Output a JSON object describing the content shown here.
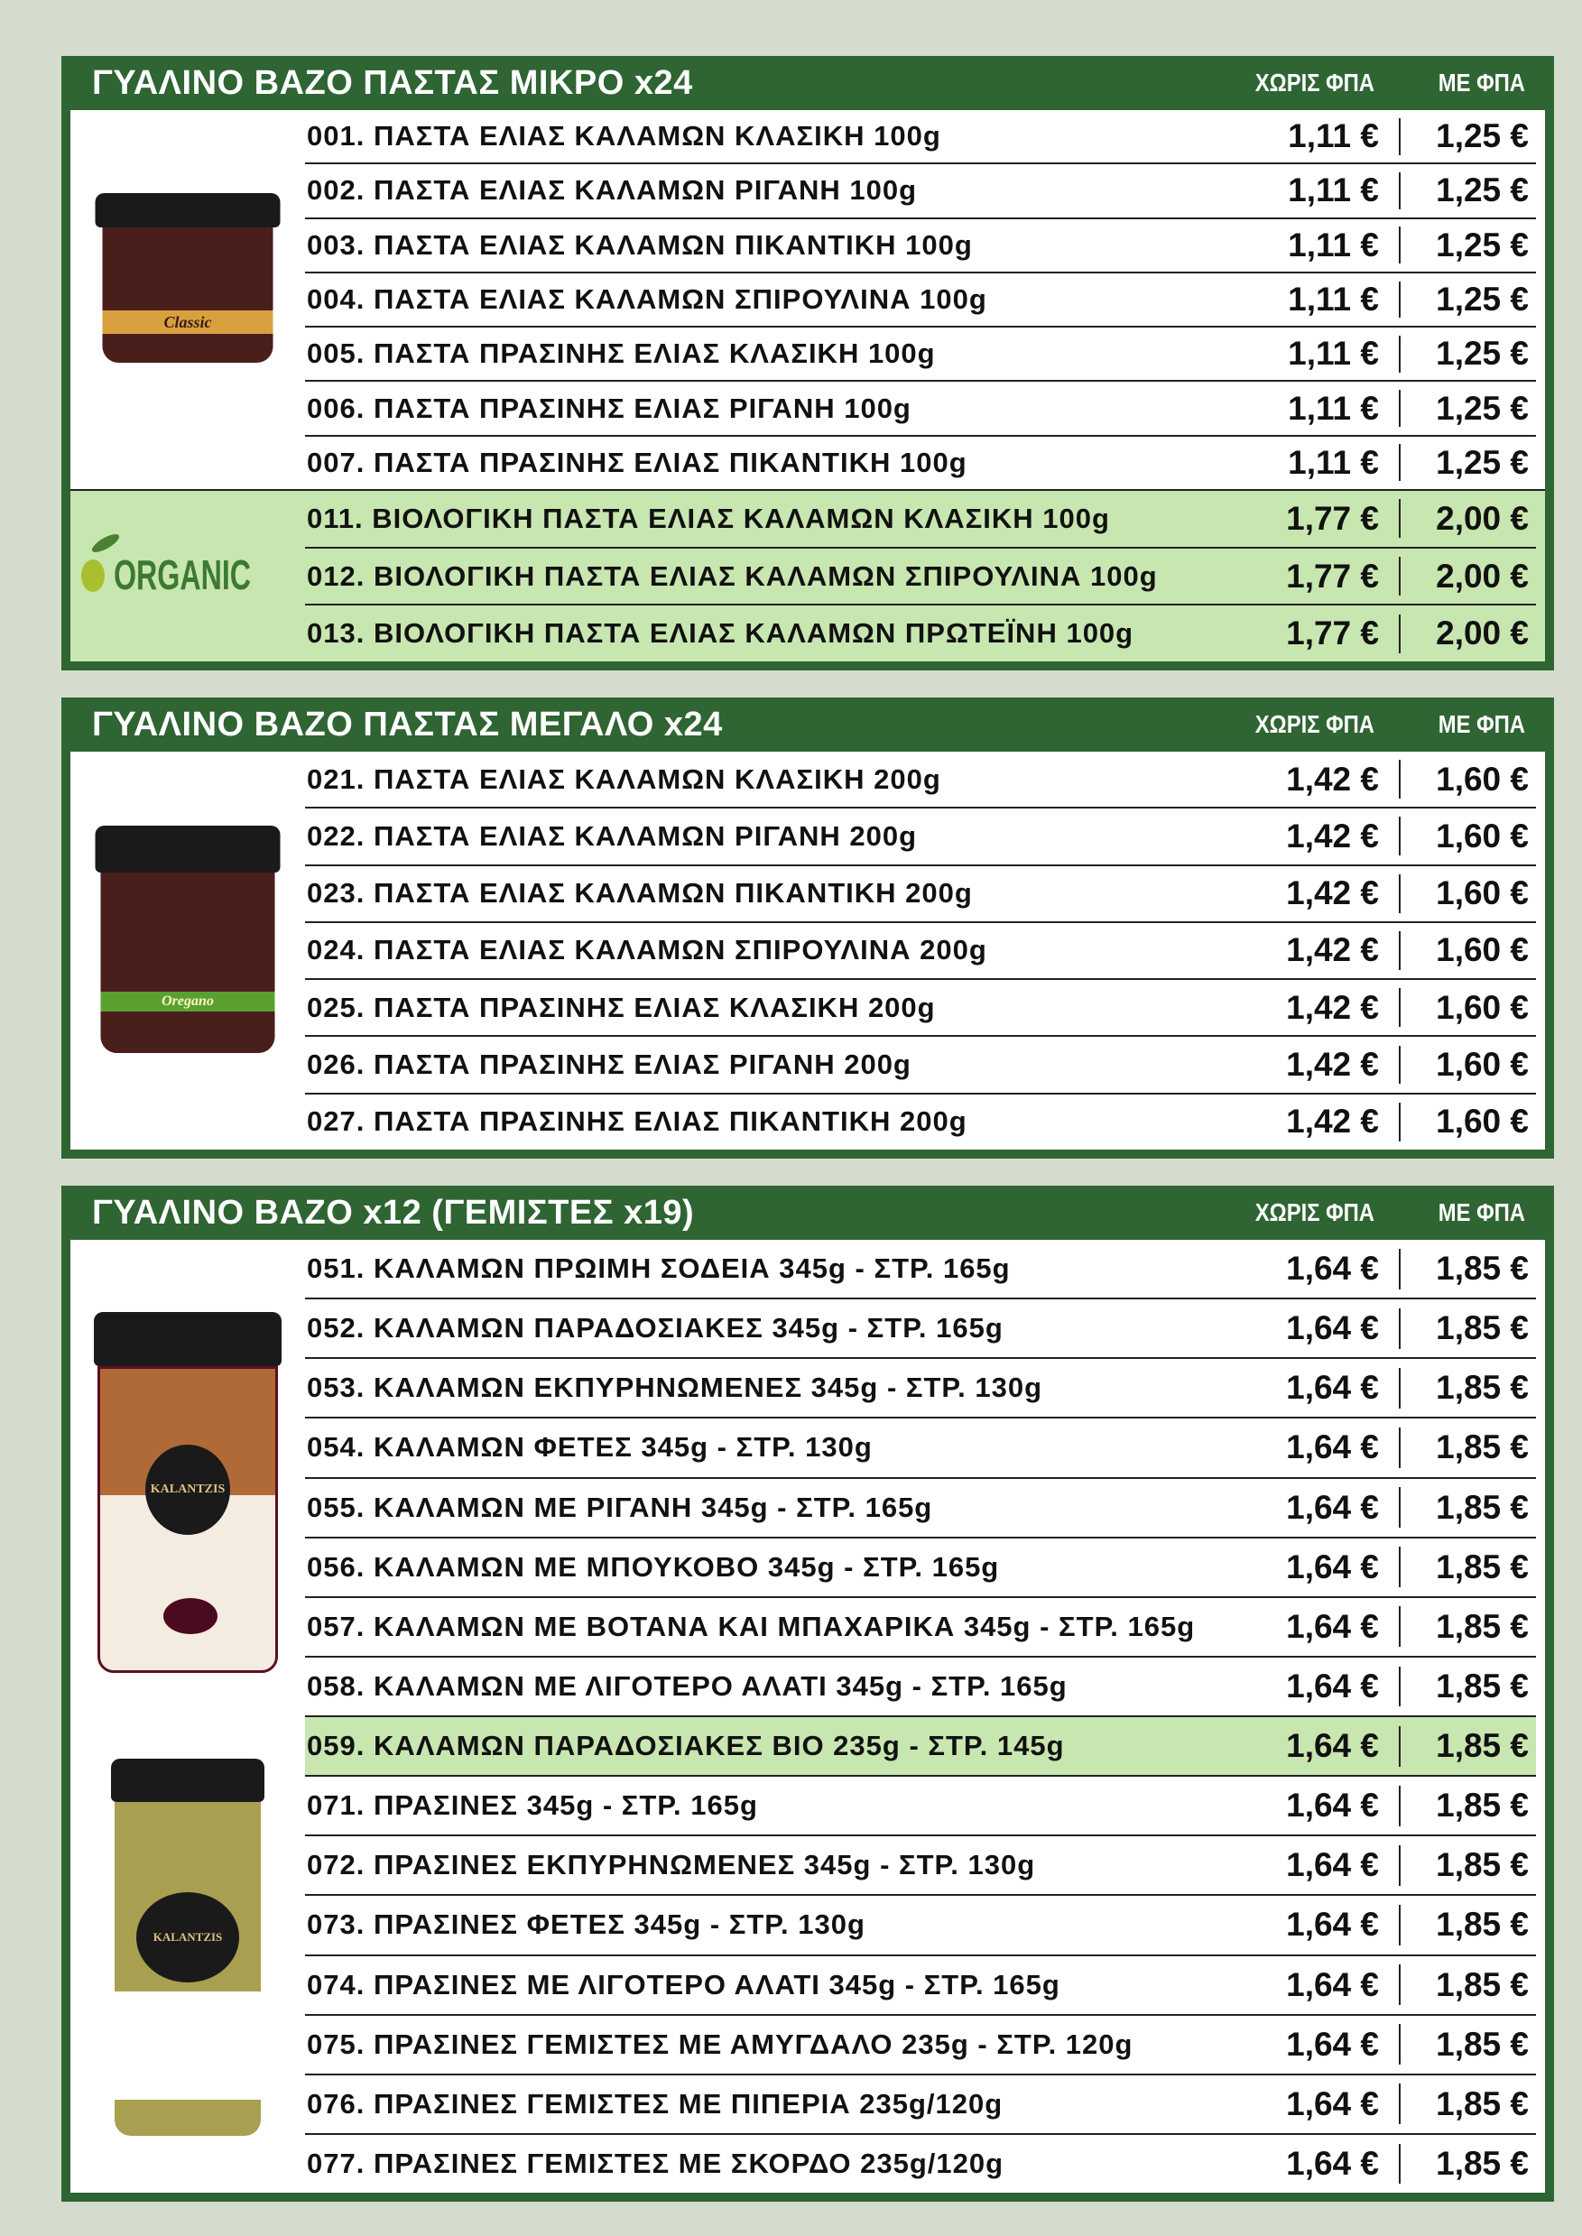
{
  "colors": {
    "background": "#d6dccd",
    "header": "#2f6433",
    "highlight": "#c8e6b0"
  },
  "columns": {
    "without_vat": "ΧΩΡΙΣ ΦΠΑ",
    "with_vat": "ΜΕ ΦΠΑ"
  },
  "sections": [
    {
      "title": "ΓΥΑΛΙΝΟ ΒΑΖΟ ΠΑΣΤΑΣ ΜΙΚΡΟ x24",
      "jar_label": "Classic",
      "organic_logo": "ORGANIC",
      "items": [
        {
          "name": "001. ΠΑΣΤΑ ΕΛΙΑΣ ΚΑΛΑΜΩΝ ΚΛΑΣΙΚΗ 100g",
          "p1": "1,11 €",
          "p2": "1,25 €"
        },
        {
          "name": "002. ΠΑΣΤΑ ΕΛΙΑΣ ΚΑΛΑΜΩΝ ΡΙΓΑΝΗ 100g",
          "p1": "1,11 €",
          "p2": "1,25 €"
        },
        {
          "name": "003. ΠΑΣΤΑ ΕΛΙΑΣ ΚΑΛΑΜΩΝ ΠΙΚΑΝΤΙΚΗ 100g",
          "p1": "1,11 €",
          "p2": "1,25 €"
        },
        {
          "name": "004. ΠΑΣΤΑ ΕΛΙΑΣ ΚΑΛΑΜΩΝ ΣΠΙΡΟΥΛΙΝΑ 100g",
          "p1": "1,11 €",
          "p2": "1,25 €"
        },
        {
          "name": "005. ΠΑΣΤΑ ΠΡΑΣΙΝΗΣ ΕΛΙΑΣ ΚΛΑΣΙΚΗ 100g",
          "p1": "1,11 €",
          "p2": "1,25 €"
        },
        {
          "name": "006. ΠΑΣΤΑ ΠΡΑΣΙΝΗΣ ΕΛΙΑΣ ΡΙΓΑΝΗ 100g",
          "p1": "1,11 €",
          "p2": "1,25 €"
        },
        {
          "name": "007. ΠΑΣΤΑ ΠΡΑΣΙΝΗΣ ΕΛΙΑΣ ΠΙΚΑΝΤΙΚΗ 100g",
          "p1": "1,11 €",
          "p2": "1,25 €"
        }
      ],
      "organic_items": [
        {
          "name": "011. ΒΙΟΛΟΓΙΚΗ ΠΑΣΤΑ ΕΛΙΑΣ ΚΑΛΑΜΩΝ ΚΛΑΣΙΚΗ 100g",
          "p1": "1,77 €",
          "p2": "2,00 €"
        },
        {
          "name": "012. ΒΙΟΛΟΓΙΚΗ ΠΑΣΤΑ ΕΛΙΑΣ ΚΑΛΑΜΩΝ ΣΠΙΡΟΥΛΙΝΑ 100g",
          "p1": "1,77 €",
          "p2": "2,00 €"
        },
        {
          "name": "013. ΒΙΟΛΟΓΙΚΗ ΠΑΣΤΑ ΕΛΙΑΣ ΚΑΛΑΜΩΝ ΠΡΩΤΕΪΝΗ 100g",
          "p1": "1,77 €",
          "p2": "2,00 €"
        }
      ]
    },
    {
      "title": "ΓΥΑΛΙΝΟ ΒΑΖΟ ΠΑΣΤΑΣ ΜΕΓΑΛΟ x24",
      "jar_label": "Oregano",
      "items": [
        {
          "name": "021. ΠΑΣΤΑ ΕΛΙΑΣ ΚΑΛΑΜΩΝ ΚΛΑΣΙΚΗ 200g",
          "p1": "1,42 €",
          "p2": "1,60 €"
        },
        {
          "name": "022. ΠΑΣΤΑ ΕΛΙΑΣ ΚΑΛΑΜΩΝ ΡΙΓΑΝΗ 200g",
          "p1": "1,42 €",
          "p2": "1,60 €"
        },
        {
          "name": "023. ΠΑΣΤΑ ΕΛΙΑΣ ΚΑΛΑΜΩΝ ΠΙΚΑΝΤΙΚΗ 200g",
          "p1": "1,42 €",
          "p2": "1,60 €"
        },
        {
          "name": "024. ΠΑΣΤΑ ΕΛΙΑΣ ΚΑΛΑΜΩΝ ΣΠΙΡΟΥΛΙΝΑ 200g",
          "p1": "1,42 €",
          "p2": "1,60 €"
        },
        {
          "name": "025. ΠΑΣΤΑ ΠΡΑΣΙΝΗΣ ΕΛΙΑΣ ΚΛΑΣΙΚΗ 200g",
          "p1": "1,42 €",
          "p2": "1,60 €"
        },
        {
          "name": "026. ΠΑΣΤΑ ΠΡΑΣΙΝΗΣ ΕΛΙΑΣ ΡΙΓΑΝΗ 200g",
          "p1": "1,42 €",
          "p2": "1,60 €"
        },
        {
          "name": "027. ΠΑΣΤΑ ΠΡΑΣΙΝΗΣ ΕΛΙΑΣ ΠΙΚΑΝΤΙΚΗ 200g",
          "p1": "1,42 €",
          "p2": "1,60 €"
        }
      ]
    },
    {
      "title": "ΓΥΑΛΙΝΟ ΒΑΖΟ x12 (ΓΕΜΙΣΤΕΣ x19)",
      "jar_brand": "KALANTZIS",
      "items": [
        {
          "name": "051. ΚΑΛΑΜΩΝ ΠΡΩΙΜΗ ΣΟΔΕΙΑ 345g - ΣΤΡ. 165g",
          "p1": "1,64 €",
          "p2": "1,85 €"
        },
        {
          "name": "052. ΚΑΛΑΜΩΝ ΠΑΡΑΔΟΣΙΑΚΕΣ 345g - ΣΤΡ. 165g",
          "p1": "1,64 €",
          "p2": "1,85 €"
        },
        {
          "name": "053. ΚΑΛΑΜΩΝ ΕΚΠΥΡΗΝΩΜΕΝΕΣ 345g - ΣΤΡ. 130g",
          "p1": "1,64 €",
          "p2": "1,85 €"
        },
        {
          "name": "054. ΚΑΛΑΜΩΝ ΦΕΤΕΣ 345g - ΣΤΡ. 130g",
          "p1": "1,64 €",
          "p2": "1,85 €"
        },
        {
          "name": "055. ΚΑΛΑΜΩΝ ΜΕ ΡΙΓΑΝΗ 345g - ΣΤΡ. 165g",
          "p1": "1,64 €",
          "p2": "1,85 €"
        },
        {
          "name": "056. ΚΑΛΑΜΩΝ ΜΕ ΜΠΟΥΚΟΒΟ 345g - ΣΤΡ. 165g",
          "p1": "1,64 €",
          "p2": "1,85 €"
        },
        {
          "name": "057. ΚΑΛΑΜΩΝ ΜΕ ΒΟΤΑΝΑ ΚΑΙ ΜΠΑΧΑΡΙΚΑ 345g - ΣΤΡ. 165g",
          "p1": "1,64 €",
          "p2": "1,85 €"
        },
        {
          "name": "058. ΚΑΛΑΜΩΝ ΜΕ ΛΙΓΟΤΕΡΟ ΑΛΑΤΙ 345g - ΣΤΡ. 165g",
          "p1": "1,64 €",
          "p2": "1,85 €"
        },
        {
          "name": "059. ΚΑΛΑΜΩΝ ΠΑΡΑΔΟΣΙΑΚΕΣ ΒΙΟ 235g - ΣΤΡ. 145g",
          "p1": "1,64 €",
          "p2": "1,85 €",
          "highlight": true
        },
        {
          "name": "071. ΠΡΑΣΙΝΕΣ 345g - ΣΤΡ. 165g",
          "p1": "1,64 €",
          "p2": "1,85 €"
        },
        {
          "name": "072. ΠΡΑΣΙΝΕΣ ΕΚΠΥΡΗΝΩΜΕΝΕΣ 345g - ΣΤΡ. 130g",
          "p1": "1,64 €",
          "p2": "1,85 €"
        },
        {
          "name": "073. ΠΡΑΣΙΝΕΣ ΦΕΤΕΣ 345g - ΣΤΡ. 130g",
          "p1": "1,64 €",
          "p2": "1,85 €"
        },
        {
          "name": "074. ΠΡΑΣΙΝΕΣ ΜΕ ΛΙΓΟΤΕΡΟ ΑΛΑΤΙ 345g - ΣΤΡ. 165g",
          "p1": "1,64 €",
          "p2": "1,85 €"
        },
        {
          "name": "075. ΠΡΑΣΙΝΕΣ ΓΕΜΙΣΤΕΣ ΜΕ ΑΜΥΓΔΑΛΟ 235g - ΣΤΡ. 120g",
          "p1": "1,64 €",
          "p2": "1,85 €"
        },
        {
          "name": "076. ΠΡΑΣΙΝΕΣ ΓΕΜΙΣΤΕΣ ΜΕ ΠΙΠΕΡΙΑ 235g/120g",
          "p1": "1,64 €",
          "p2": "1,85 €"
        },
        {
          "name": "077. ΠΡΑΣΙΝΕΣ ΓΕΜΙΣΤΕΣ ΜΕ ΣΚΟΡΔΟ 235g/120g",
          "p1": "1,64 €",
          "p2": "1,85 €"
        }
      ]
    }
  ]
}
